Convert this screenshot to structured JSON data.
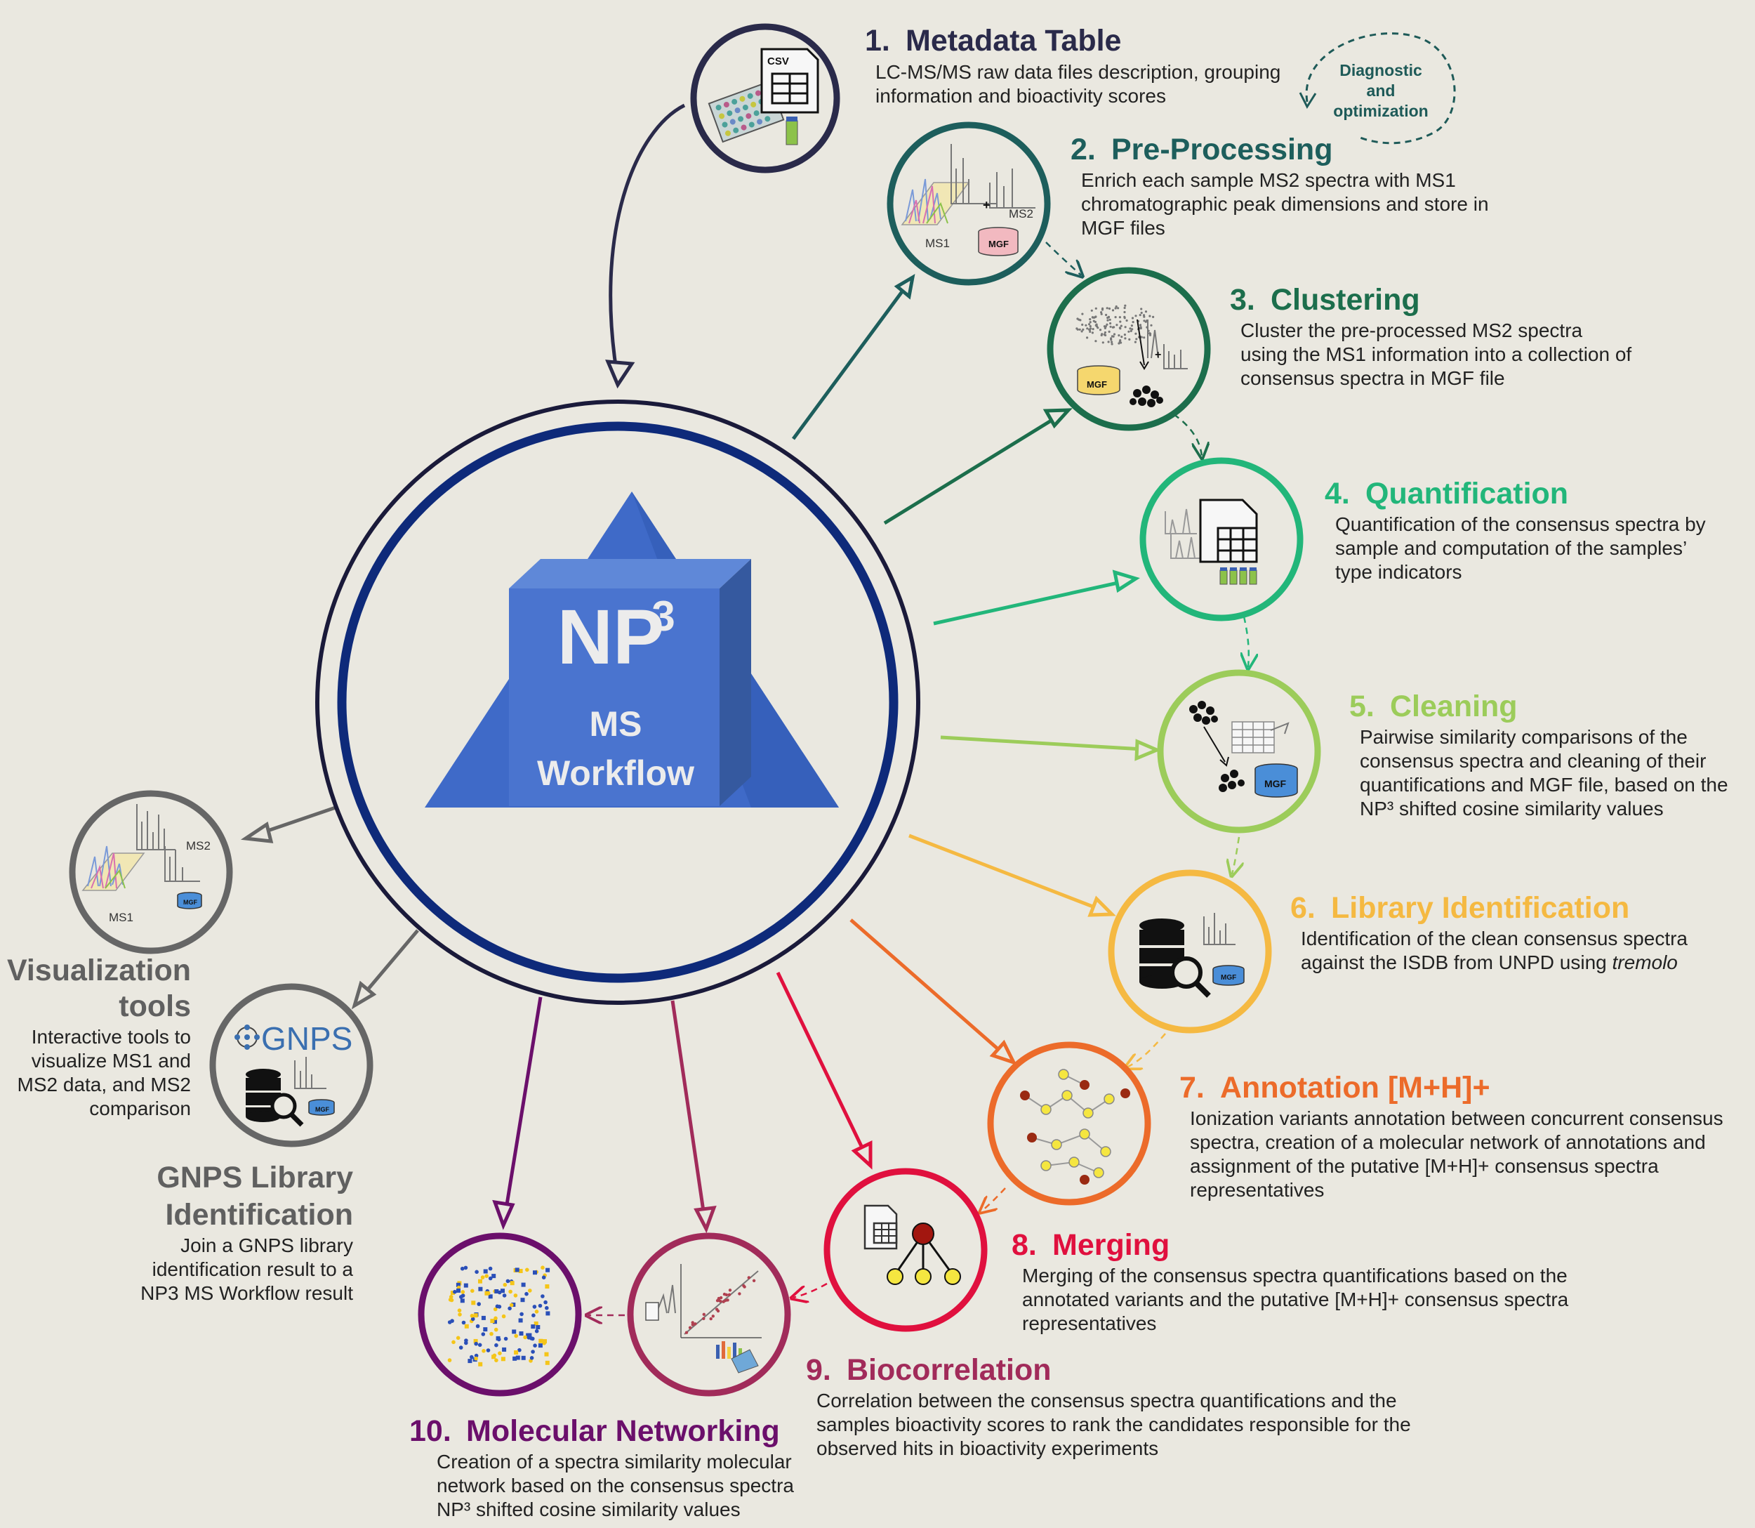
{
  "hub": {
    "np": "NP",
    "sup": "3",
    "line1": "MS",
    "line2": "Workflow"
  },
  "diagnostic": {
    "line1": "Diagnostic",
    "line2": "and",
    "line3": "optimization",
    "color": "#1e5a58"
  },
  "steps": [
    {
      "num": "1.",
      "title": "Metadata Table",
      "color": "#2a2a4a",
      "desc": [
        "LC-MS/MS raw data files description, grouping",
        "information and bioactivity scores"
      ]
    },
    {
      "num": "2.",
      "title": "Pre-Processing",
      "color": "#1d5e5c",
      "desc": [
        "Enrich each sample MS2 spectra with MS1",
        "chromatographic peak dimensions and store in",
        "MGF files"
      ]
    },
    {
      "num": "3.",
      "title": "Clustering",
      "color": "#1c6e4c",
      "desc": [
        "Cluster the pre-processed MS2 spectra",
        "using the MS1 information into a collection of",
        "consensus spectra in MGF file"
      ]
    },
    {
      "num": "4.",
      "title": "Quantification",
      "color": "#22b67a",
      "desc": [
        "Quantification of the consensus spectra by",
        "sample and computation of the samples’",
        "type indicators"
      ]
    },
    {
      "num": "5.",
      "title": "Cleaning",
      "color": "#9ccc5a",
      "desc": [
        "Pairwise similarity comparisons of the",
        "consensus spectra and cleaning of their",
        "quantifications and MGF file, based on the",
        "NP³ shifted cosine similarity values"
      ]
    },
    {
      "num": "6.",
      "title": "Library Identification",
      "color": "#f5b942",
      "desc": [
        "Identification of the clean consensus spectra",
        "against the ISDB from UNPD using "
      ],
      "desc_italic": "tremolo"
    },
    {
      "num": "7.",
      "title": "Annotation [M+H]+",
      "color": "#ec6b2a",
      "desc": [
        "Ionization variants annotation between concurrent consensus",
        "spectra, creation of a molecular network of annotations and",
        "assignment of the putative [M+H]+ consensus spectra",
        "representatives"
      ]
    },
    {
      "num": "8.",
      "title": "Merging",
      "color": "#e0103e",
      "desc": [
        "Merging of the consensus spectra quantifications based on the",
        "annotated variants and the putative [M+H]+ consensus spectra",
        "representatives"
      ]
    },
    {
      "num": "9.",
      "title": "Biocorrelation",
      "color": "#a12b5a",
      "desc": [
        "Correlation between the consensus spectra quantifications and the",
        "samples bioactivity scores to rank the candidates responsible for the",
        "observed hits in bioactivity experiments"
      ]
    },
    {
      "num": "10.",
      "title": "Molecular Networking",
      "color": "#6b0f6b",
      "desc": [
        "Creation of a spectra similarity molecular",
        "network based on the consensus spectra",
        "NP³ shifted cosine similarity values"
      ]
    }
  ],
  "side_tools": [
    {
      "title": [
        "Visualization",
        "tools"
      ],
      "color": "#606060",
      "desc": [
        "Interactive tools to",
        "visualize MS1 and",
        "MS2 data, and MS2",
        "comparison"
      ]
    },
    {
      "title": [
        "GNPS Library",
        "Identification"
      ],
      "color": "#606060",
      "desc": [
        "Join a GNPS library",
        "identification result to a",
        "NP3 MS Workflow result"
      ]
    }
  ],
  "icon_labels": {
    "csv": "CSV",
    "ms1": "MS1",
    "ms2": "MS2",
    "plus": "+",
    "mgf": "MGF",
    "gnps": "GNPS"
  }
}
